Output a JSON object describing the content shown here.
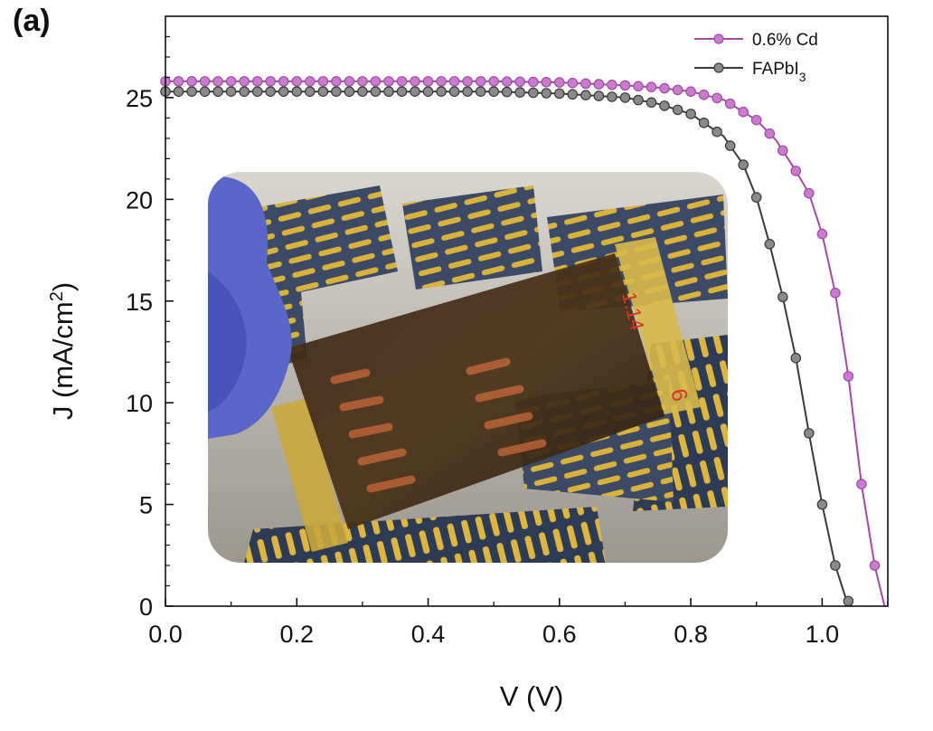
{
  "panel_label": "(a)",
  "colors": {
    "cd": "#a24aa6",
    "cd_marker": "#c77dcc",
    "fapbi": "#3a3a3a",
    "fapbi_marker": "#8a8a8a",
    "axis": "#111111"
  },
  "chart_data": {
    "type": "line",
    "xlabel": "V (V)",
    "ylabel_main": "J (mA/cm",
    "ylabel_sup": "2",
    "ylabel_close": ")",
    "xlim": [
      0.0,
      1.1
    ],
    "ylim": [
      0,
      29
    ],
    "xticks": [
      0.0,
      0.2,
      0.4,
      0.6,
      0.8,
      1.0
    ],
    "xtick_labels": [
      "0.0",
      "0.2",
      "0.4",
      "0.6",
      "0.8",
      "1.0"
    ],
    "yticks": [
      0,
      5,
      10,
      15,
      20,
      25
    ],
    "ytick_labels": [
      "0",
      "5",
      "10",
      "15",
      "20",
      "25"
    ],
    "legend_position": "top-right",
    "series": [
      {
        "name": "0.6% Cd",
        "color_key": "cd",
        "x": [
          0.0,
          0.1,
          0.2,
          0.3,
          0.4,
          0.5,
          0.6,
          0.7,
          0.75,
          0.8,
          0.85,
          0.9,
          0.93,
          0.96,
          0.98,
          1.0,
          1.02,
          1.04,
          1.06,
          1.08,
          1.095
        ],
        "y": [
          25.8,
          25.8,
          25.8,
          25.8,
          25.8,
          25.8,
          25.75,
          25.6,
          25.5,
          25.3,
          24.9,
          23.9,
          22.9,
          21.4,
          20.3,
          18.3,
          15.4,
          11.3,
          6.0,
          2.0,
          0.0
        ]
      },
      {
        "name": "FAPbI",
        "name_sub": "3",
        "color_key": "fapbi",
        "x": [
          0.0,
          0.1,
          0.2,
          0.3,
          0.4,
          0.5,
          0.6,
          0.7,
          0.75,
          0.8,
          0.85,
          0.88,
          0.9,
          0.92,
          0.94,
          0.96,
          0.98,
          1.0,
          1.02,
          1.035,
          1.045
        ],
        "y": [
          25.3,
          25.3,
          25.3,
          25.3,
          25.3,
          25.3,
          25.2,
          25.0,
          24.7,
          24.2,
          23.1,
          21.7,
          20.1,
          17.8,
          15.2,
          12.2,
          8.5,
          5.0,
          2.0,
          0.5,
          0.0
        ]
      }
    ]
  },
  "inset_photo": {
    "labels": [
      "1.14",
      "6"
    ]
  }
}
